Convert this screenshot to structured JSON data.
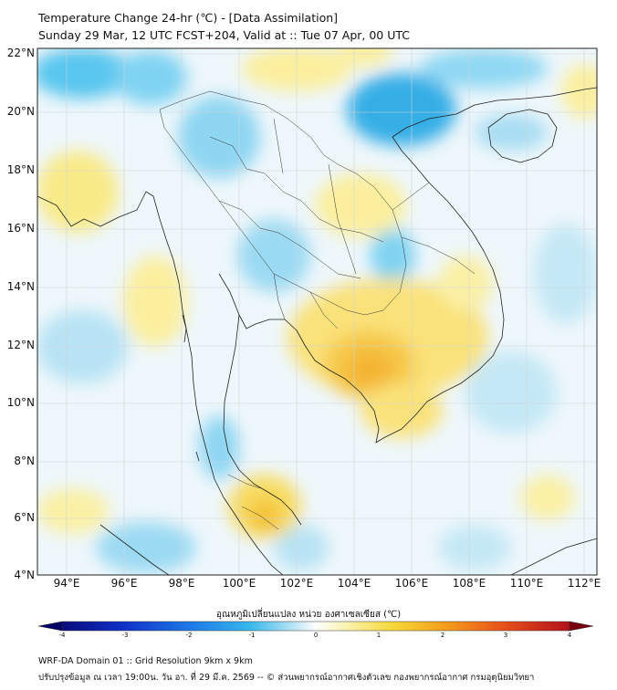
{
  "title_line1": "Temperature Change 24-hr (℃) - [Data Assimilation]",
  "title_line2": "Sunday 29 Mar, 12 UTC FCST+204, Valid at :: Tue 07 Apr, 00 UTC",
  "lat_labels": [
    "22°N",
    "20°N",
    "18°N",
    "16°N",
    "14°N",
    "12°N",
    "10°N",
    "8°N",
    "6°N",
    "4°N"
  ],
  "lon_labels": [
    "94°E",
    "96°E",
    "98°E",
    "100°E",
    "102°E",
    "104°E",
    "106°E",
    "108°E",
    "110°E",
    "112°E"
  ],
  "colorbar": {
    "label": "อุณหภูมิเปลี่ยนแปลง หน่วย องศาเซลเซียส (℃)",
    "ticks": [
      "-4",
      "-3",
      "-2",
      "-1",
      "0",
      "1",
      "2",
      "3",
      "4"
    ],
    "range": [
      -4,
      4
    ],
    "colors": [
      "#0a0a7a",
      "#1030c8",
      "#1e78e6",
      "#35b8ec",
      "#a8def2",
      "#ffffff",
      "#f8f2a0",
      "#f6d83a",
      "#f4a21c",
      "#e8501a",
      "#b4101a"
    ]
  },
  "footer_line1": "WRF-DA Domain 01 :: Grid Resolution 9km x 9km",
  "footer_line2": "ปรับปรุงข้อมูล ณ เวลา 19:00น. วัน อา. ที่ 29 มี.ค. 2569 -- © ส่วนพยากรณ์อากาศเชิงตัวเลข กองพยากรณ์อากาศ กรมอุตุนิยมวิทยา"
}
